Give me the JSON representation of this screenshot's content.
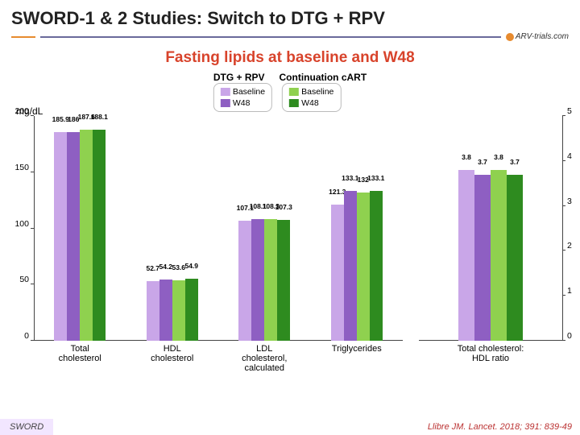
{
  "header": {
    "title": "SWORD-1 & 2 Studies: Switch to DTG + RPV",
    "logo": "ARV-trials.com"
  },
  "subtitle": "Fasting lipids at baseline and W48",
  "yLabelLeft": "mg/dL",
  "legend": {
    "group1": "DTG + RPV",
    "group2": "Continuation cART",
    "baseline": "Baseline",
    "w48": "W48"
  },
  "colors": {
    "dtg_baseline": "#c9a6e8",
    "dtg_w48": "#8e5fc2",
    "cart_baseline": "#8fd14f",
    "cart_w48": "#2e8b1f"
  },
  "leftChart": {
    "ymax": 200,
    "ytick": 50,
    "groups": [
      {
        "label": "Total\ncholesterol",
        "values": [
          185.9,
          186,
          187.6,
          188.1
        ]
      },
      {
        "label": "HDL\ncholesterol",
        "values": [
          52.7,
          54.2,
          53.6,
          54.9
        ]
      },
      {
        "label": "LDL\ncholesterol,\ncalculated",
        "values": [
          107.1,
          108.1,
          108.3,
          107.3
        ]
      },
      {
        "label": "Triglycerides",
        "values": [
          121.3,
          133.1,
          132.0,
          133.1
        ]
      }
    ]
  },
  "rightChart": {
    "ymax": 5,
    "ytick": 1,
    "groups": [
      {
        "label": "Total cholesterol:\nHDL ratio",
        "values": [
          3.8,
          3.7,
          3.8,
          3.7
        ]
      }
    ]
  },
  "footer": {
    "badge": "SWORD",
    "citation": "Llibre JM. Lancet. 2018; 391: 839-49"
  }
}
